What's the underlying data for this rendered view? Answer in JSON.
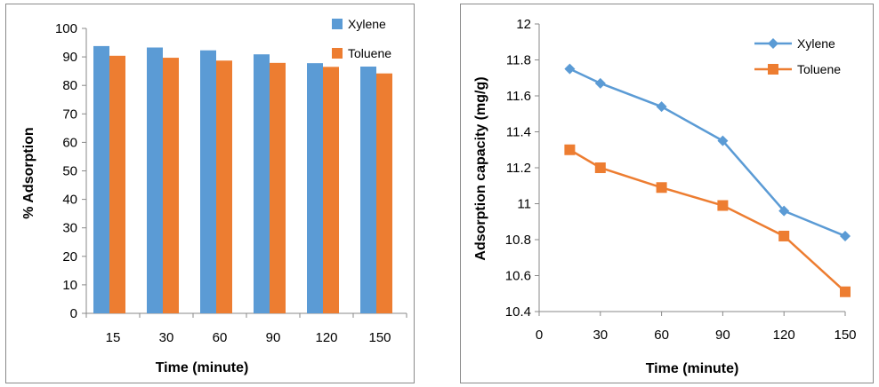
{
  "chart_data": [
    {
      "type": "bar",
      "title": "",
      "xlabel": "Time (minute)",
      "ylabel": "% Adsorption",
      "categories": [
        "15",
        "30",
        "60",
        "90",
        "120",
        "150"
      ],
      "ylim": [
        0,
        100
      ],
      "yticks": [
        "0",
        "10",
        "20",
        "30",
        "40",
        "50",
        "60",
        "70",
        "80",
        "90",
        "100"
      ],
      "series": [
        {
          "name": "Xylene",
          "color": "#5b9bd5",
          "values": [
            93.8,
            93.3,
            92.3,
            90.9,
            87.8,
            86.6
          ]
        },
        {
          "name": "Toluene",
          "color": "#ed7d31",
          "values": [
            90.4,
            89.7,
            88.7,
            87.9,
            86.5,
            84.2
          ]
        }
      ],
      "legend_position": "top-right",
      "grid": false
    },
    {
      "type": "line",
      "title": "",
      "xlabel": "Time (minute)",
      "ylabel": "Adsorption capacity (mg/g)",
      "x": [
        15,
        30,
        60,
        90,
        120,
        150
      ],
      "xlim": [
        0,
        150
      ],
      "xticks": [
        "0",
        "30",
        "60",
        "90",
        "120",
        "150"
      ],
      "ylim": [
        10.4,
        12
      ],
      "yticks": [
        "10.4",
        "10.6",
        "10.8",
        "11",
        "11.2",
        "11.4",
        "11.6",
        "11.8",
        "12"
      ],
      "series": [
        {
          "name": "Xylene",
          "color": "#5b9bd5",
          "marker": "diamond",
          "values": [
            11.75,
            11.67,
            11.54,
            11.35,
            10.96,
            10.82
          ]
        },
        {
          "name": "Toluene",
          "color": "#ed7d31",
          "marker": "square",
          "values": [
            11.3,
            11.2,
            11.09,
            10.99,
            10.82,
            10.51
          ]
        }
      ],
      "legend_position": "top-right",
      "grid": false
    }
  ]
}
